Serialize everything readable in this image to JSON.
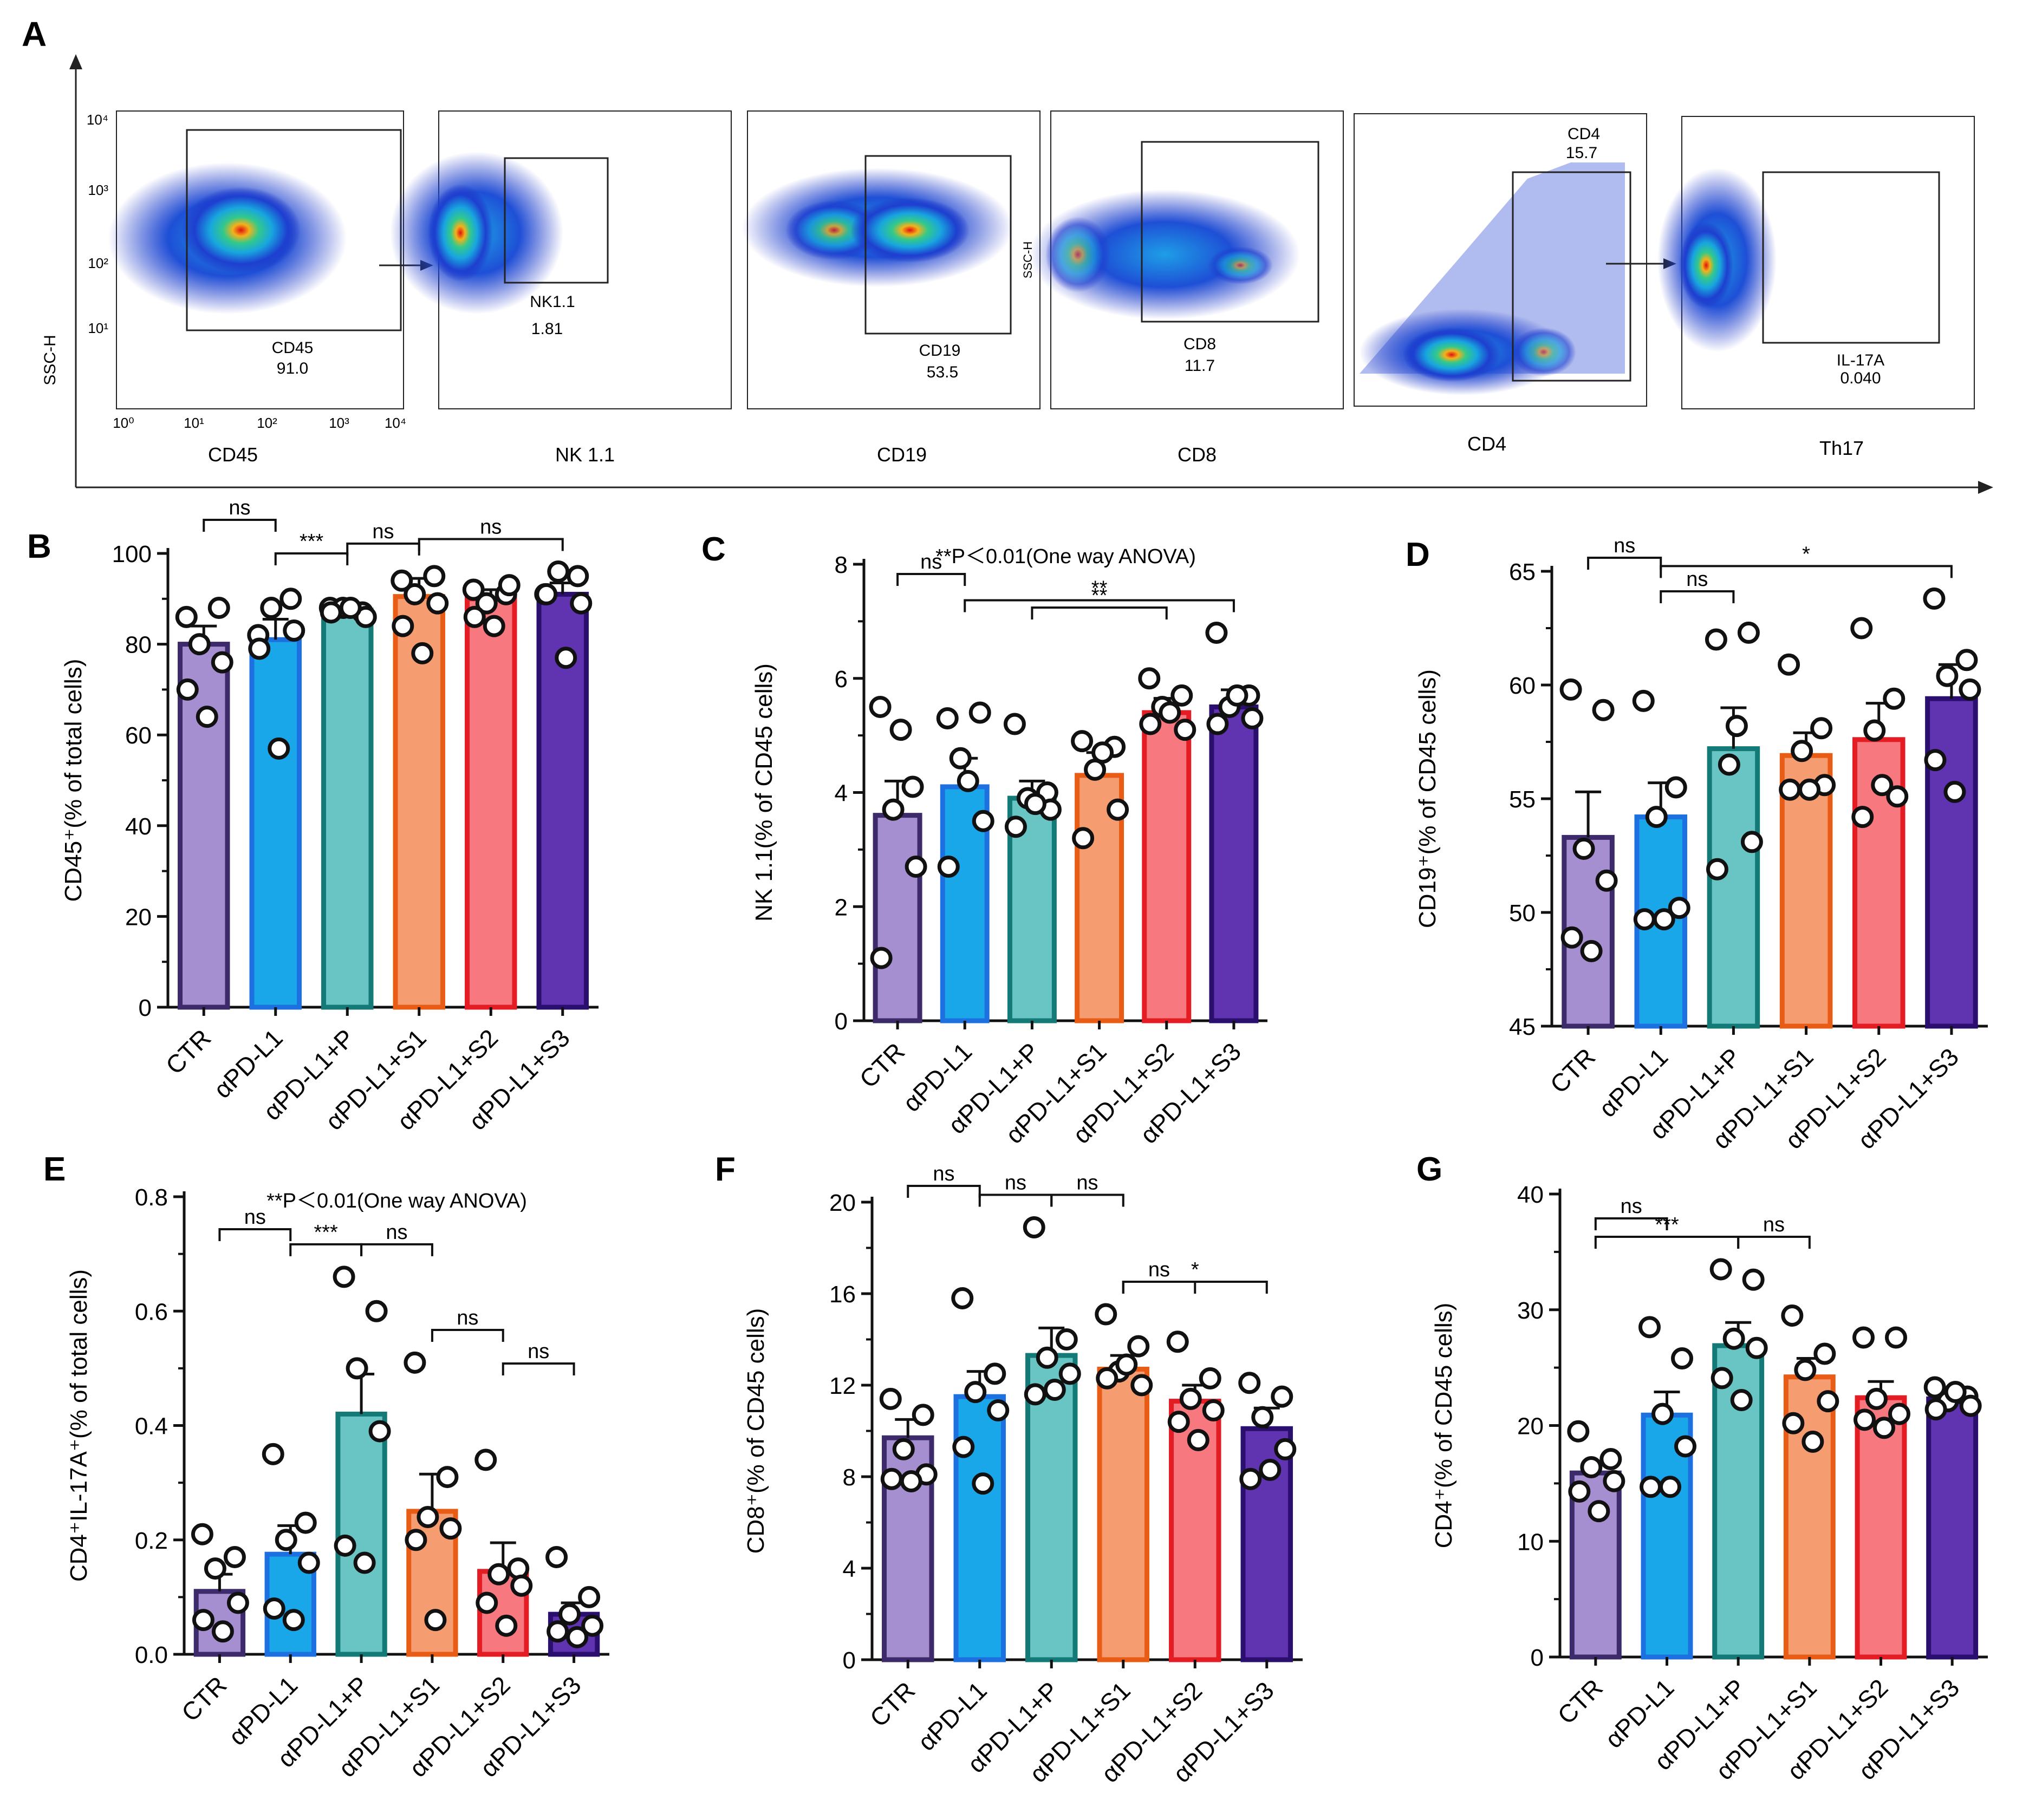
{
  "panel_letters": [
    "A",
    "B",
    "C",
    "D",
    "E",
    "F",
    "G"
  ],
  "categories": [
    "CTR",
    "αPD-L1",
    "αPD-L1+P",
    "αPD-L1+S1",
    "αPD-L1+S2",
    "αPD-L1+S3"
  ],
  "colors": {
    "fills": [
      "#a58fd0",
      "#1aa7ea",
      "#69c5c4",
      "#f59c70",
      "#f7787e",
      "#6033b0"
    ],
    "outlines": [
      "#3c2a6a",
      "#1d70e0",
      "#147a78",
      "#e85c16",
      "#e41c24",
      "#2a0f6e"
    ],
    "points": "#111111"
  },
  "flow": {
    "y_axis_label": "SSC-H",
    "x_tick_labels": [
      "10⁰",
      "10¹",
      "10²",
      "10³",
      "10⁴"
    ],
    "y_tick_labels": [
      "10¹",
      "10²",
      "10³",
      "10⁴"
    ],
    "ssc_label_inner": "SSC-H",
    "plots": [
      {
        "axis_label": "CD45",
        "gate_name": "CD45",
        "gate_value": "91.0"
      },
      {
        "axis_label": "NK 1.1",
        "gate_name": "NK1.1",
        "gate_value": "1.81"
      },
      {
        "axis_label": "CD19",
        "gate_name": "CD19",
        "gate_value": "53.5"
      },
      {
        "axis_label": "CD8",
        "gate_name": "CD8",
        "gate_value": "11.7"
      },
      {
        "axis_label": "CD4",
        "gate_name": "CD4",
        "gate_value": "15.7"
      },
      {
        "axis_label": "Th17",
        "gate_name": "IL-17A",
        "gate_value": "0.040"
      }
    ]
  },
  "chart_data": [
    {
      "panel": "B",
      "type": "bar",
      "ylabel": "CD45⁺(% of total cells)",
      "ylim": [
        0,
        100
      ],
      "yticks": [
        0,
        20,
        40,
        60,
        80,
        100
      ],
      "categories": [
        "CTR",
        "αPD-L1",
        "αPD-L1+P",
        "αPD-L1+S1",
        "αPD-L1+S2",
        "αPD-L1+S3"
      ],
      "means": [
        80,
        81,
        87.5,
        90.5,
        90,
        91
      ],
      "sem": [
        4,
        4.5,
        1,
        4,
        2,
        2.5
      ],
      "points": [
        [
          86,
          88,
          80,
          76,
          70,
          64
        ],
        [
          82,
          90,
          88,
          83,
          79,
          57
        ],
        [
          88,
          87,
          88,
          86,
          87,
          88
        ],
        [
          94,
          95,
          91,
          89,
          84,
          78
        ],
        [
          92,
          91,
          89,
          93,
          86,
          84
        ],
        [
          91,
          95,
          96,
          89,
          91,
          77
        ]
      ],
      "annotations": [
        {
          "label": "ns",
          "from": 0,
          "to": 1
        },
        {
          "label": "***",
          "from": 1,
          "to": 2
        },
        {
          "label": "ns",
          "from": 2,
          "to": 3
        },
        {
          "label": "ns",
          "from": 3,
          "to": 5
        }
      ]
    },
    {
      "panel": "C",
      "type": "bar",
      "title": "**P＜0.01(One way ANOVA)",
      "ylabel": "NK 1.1(% of CD45 cells)",
      "ylim": [
        0,
        8
      ],
      "yticks": [
        0,
        2,
        4,
        6,
        8
      ],
      "categories": [
        "CTR",
        "αPD-L1",
        "αPD-L1+P",
        "αPD-L1+S1",
        "αPD-L1+S2",
        "αPD-L1+S3"
      ],
      "means": [
        3.6,
        4.1,
        3.9,
        4.3,
        5.4,
        5.5
      ],
      "sem": [
        0.6,
        0.5,
        0.3,
        0.4,
        0.25,
        0.3
      ],
      "points": [
        [
          5.5,
          4.1,
          3.7,
          2.7,
          1.1,
          5.1
        ],
        [
          5.3,
          5.4,
          4.6,
          3.5,
          2.7,
          4.2
        ],
        [
          5.2,
          4.0,
          3.9,
          3.7,
          3.4,
          3.8
        ],
        [
          4.9,
          4.8,
          4.4,
          3.7,
          3.2,
          4.7
        ],
        [
          6.0,
          5.7,
          5.5,
          5.1,
          5.2,
          5.4
        ],
        [
          6.8,
          5.7,
          5.5,
          5.3,
          5.2,
          5.7
        ]
      ],
      "annotations": [
        {
          "label": "ns",
          "from": 0,
          "to": 1
        },
        {
          "label": "**",
          "from": 2,
          "to": 4
        },
        {
          "label": "**",
          "from": 1,
          "to": 5
        }
      ]
    },
    {
      "panel": "D",
      "type": "bar",
      "ylabel": "CD19⁺(% of CD45 cells)",
      "ylim": [
        45,
        65
      ],
      "yticks": [
        45,
        50,
        55,
        60,
        65
      ],
      "categories": [
        "CTR",
        "αPD-L1",
        "αPD-L1+P",
        "αPD-L1+S1",
        "αPD-L1+S2",
        "αPD-L1+S3"
      ],
      "means": [
        53.3,
        54.2,
        57.2,
        56.9,
        57.6,
        59.4
      ],
      "sem": [
        2,
        1.5,
        1.8,
        1,
        1.6,
        1.5
      ],
      "points": [
        [
          59.8,
          58.9,
          52.8,
          51.4,
          48.9,
          48.3
        ],
        [
          59.3,
          55.5,
          54.2,
          50.2,
          49.7,
          49.7
        ],
        [
          62.0,
          62.3,
          56.5,
          53.1,
          51.9,
          58.2
        ],
        [
          60.9,
          58.1,
          57.1,
          55.6,
          55.4,
          55.4
        ],
        [
          62.5,
          59.4,
          58.0,
          55.1,
          54.2,
          55.6
        ],
        [
          63.8,
          61.1,
          60.4,
          59.8,
          56.7,
          55.3
        ]
      ],
      "annotations": [
        {
          "label": "ns",
          "from": 0,
          "to": 1
        },
        {
          "label": "ns",
          "from": 1,
          "to": 2
        },
        {
          "label": "*",
          "from": 1,
          "to": 5
        }
      ]
    },
    {
      "panel": "E",
      "type": "bar",
      "title": "**P＜0.01(One way ANOVA)",
      "ylabel": "CD4⁺IL-17A⁺(% of total cells)",
      "ylim": [
        0,
        0.8
      ],
      "yticks": [
        "0.0",
        "0.2",
        "0.4",
        "0.6",
        "0.8"
      ],
      "categories": [
        "CTR",
        "αPD-L1",
        "αPD-L1+P",
        "αPD-L1+S1",
        "αPD-L1+S2",
        "αPD-L1+S3"
      ],
      "means": [
        0.11,
        0.175,
        0.42,
        0.25,
        0.145,
        0.07
      ],
      "sem": [
        0.03,
        0.05,
        0.07,
        0.065,
        0.05,
        0.02
      ],
      "points": [
        [
          0.21,
          0.17,
          0.15,
          0.09,
          0.06,
          0.04
        ],
        [
          0.35,
          0.23,
          0.2,
          0.16,
          0.08,
          0.06
        ],
        [
          0.66,
          0.6,
          0.5,
          0.39,
          0.19,
          0.16
        ],
        [
          0.51,
          0.31,
          0.24,
          0.22,
          0.2,
          0.06
        ],
        [
          0.34,
          0.15,
          0.14,
          0.12,
          0.09,
          0.05
        ],
        [
          0.17,
          0.1,
          0.07,
          0.05,
          0.04,
          0.03
        ]
      ],
      "annotations": [
        {
          "label": "ns",
          "from": 0,
          "to": 1
        },
        {
          "label": "***",
          "from": 1,
          "to": 2
        },
        {
          "label": "ns",
          "from": 2,
          "to": 3
        },
        {
          "label": "ns",
          "from": 3,
          "to": 4
        },
        {
          "label": "ns",
          "from": 4,
          "to": 5
        }
      ]
    },
    {
      "panel": "F",
      "type": "bar",
      "ylabel": "CD8⁺(% of CD45 cells)",
      "ylim": [
        0,
        20
      ],
      "yticks": [
        0,
        4,
        8,
        12,
        16,
        20
      ],
      "categories": [
        "CTR",
        "αPD-L1",
        "αPD-L1+P",
        "αPD-L1+S1",
        "αPD-L1+S2",
        "αPD-L1+S3"
      ],
      "means": [
        9.7,
        11.5,
        13.3,
        12.7,
        11.3,
        10.1
      ],
      "sem": [
        0.8,
        1.1,
        1.2,
        0.6,
        0.7,
        0.9
      ],
      "points": [
        [
          11.4,
          10.7,
          9.2,
          8.1,
          7.9,
          7.8
        ],
        [
          15.8,
          12.5,
          11.7,
          10.9,
          9.3,
          7.7
        ],
        [
          18.9,
          14.0,
          13.2,
          12.5,
          11.6,
          11.8
        ],
        [
          15.1,
          13.7,
          12.6,
          12.0,
          12.3,
          12.9
        ],
        [
          13.9,
          12.3,
          11.4,
          10.9,
          10.4,
          9.6
        ],
        [
          12.1,
          11.5,
          10.6,
          9.2,
          7.9,
          8.3
        ]
      ],
      "annotations": [
        {
          "label": "ns",
          "from": 0,
          "to": 1
        },
        {
          "label": "ns",
          "from": 1,
          "to": 2
        },
        {
          "label": "ns",
          "from": 2,
          "to": 3
        },
        {
          "label": "ns",
          "from": 3,
          "to": 4
        },
        {
          "label": "*",
          "from": 3,
          "to": 5
        }
      ]
    },
    {
      "panel": "G",
      "type": "bar",
      "ylabel": "CD4⁺(% of CD45 cells)",
      "ylim": [
        0,
        40
      ],
      "yticks": [
        0,
        10,
        20,
        30,
        40
      ],
      "categories": [
        "CTR",
        "αPD-L1",
        "αPD-L1+P",
        "αPD-L1+S1",
        "αPD-L1+S2",
        "αPD-L1+S3"
      ],
      "means": [
        15.9,
        20.9,
        26.9,
        24.2,
        22.4,
        22.3
      ],
      "sem": [
        0.8,
        2,
        2,
        1.6,
        1.4,
        0.6
      ],
      "points": [
        [
          19.5,
          17.1,
          16.4,
          15.2,
          14.3,
          12.6
        ],
        [
          28.5,
          25.8,
          21.0,
          18.2,
          14.7,
          14.7
        ],
        [
          33.5,
          32.6,
          27.5,
          26.7,
          24.1,
          22.2
        ],
        [
          29.5,
          26.2,
          24.8,
          22.1,
          20.2,
          18.6
        ],
        [
          27.6,
          27.6,
          22.3,
          21.0,
          20.5,
          19.8
        ],
        [
          23.3,
          22.5,
          22.1,
          21.7,
          21.4,
          22.9
        ]
      ],
      "annotations": [
        {
          "label": "ns",
          "from": 0,
          "to": 1
        },
        {
          "label": "***",
          "from": 0,
          "to": 2
        },
        {
          "label": "ns",
          "from": 2,
          "to": 3
        }
      ]
    }
  ]
}
